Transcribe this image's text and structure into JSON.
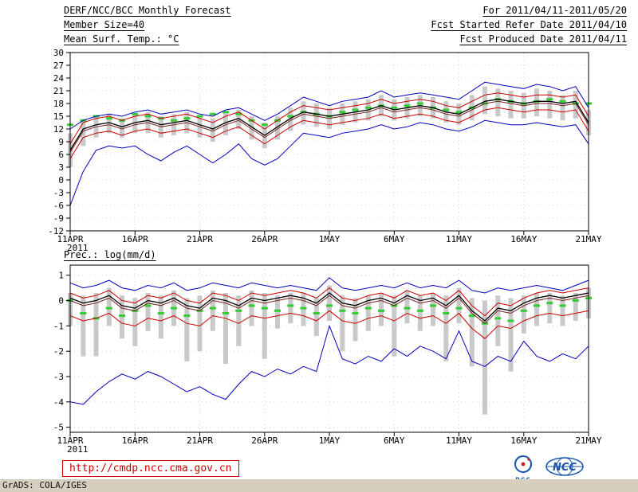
{
  "header": {
    "title_left": "DERF/NCC/BCC Monthly Forecast",
    "period_right": "For 2011/04/11-2011/05/20",
    "member_size": "Member Size=40",
    "refer_date": "Fcst Started Refer Date 2011/04/10",
    "temp_title": "Mean Surf. Temp.: °C",
    "produced_date": "Fcst Produced Date 2011/04/11"
  },
  "prec_title": "Prec.: log(mm/d)",
  "footer": {
    "url": "http://cmdp.ncc.cma.gov.cn",
    "bcc_label": "BCC",
    "ncc_label": "NCC",
    "grads_credit": "GrADS: COLA/IGES"
  },
  "colors": {
    "line_blue": "#0000bb",
    "line_red": "#cc0000",
    "line_black": "#000000",
    "line_maroon": "#7a2020",
    "obs_green": "#33cc33",
    "bar_gray": "#c9c9c9",
    "url_red": "#cc0000",
    "logo_blue": "#1a56b0",
    "strip_tan": "#d6cfc0"
  },
  "chart_data": [
    {
      "type": "line",
      "title": "Mean Surf. Temp.: °C",
      "xlabel": "",
      "ylabel": "",
      "ylim": [
        -12,
        30
      ],
      "yticks": [
        -12,
        -9,
        -6,
        -3,
        0,
        3,
        6,
        9,
        12,
        15,
        18,
        21,
        24,
        27,
        30
      ],
      "x_tick_days": [
        0,
        5,
        10,
        15,
        20,
        25,
        30,
        35,
        40
      ],
      "x_tick_labels": [
        "11APR",
        "16APR",
        "21APR",
        "26APR",
        "1MAY",
        "6MAY",
        "11MAY",
        "16MAY",
        "21MAY"
      ],
      "year_label": "2011",
      "n": 41,
      "legend": "off",
      "grid": "dotted",
      "bars": {
        "name": "ensemble-spread",
        "color": "#c9c9c9",
        "top": [
          11,
          14,
          15,
          15.5,
          14.5,
          15.5,
          16,
          15,
          15.5,
          16,
          15,
          14.5,
          16,
          16.5,
          15,
          13.5,
          15,
          17,
          18.5,
          18,
          17,
          18,
          18.5,
          19,
          20,
          19,
          19.5,
          20,
          19.5,
          18.5,
          18,
          20,
          22,
          21.5,
          21,
          20.5,
          21.5,
          21,
          20,
          21,
          16.5
        ],
        "bottom": [
          3,
          8,
          10,
          11,
          10,
          11,
          11,
          10,
          10.5,
          11,
          10,
          9,
          10.5,
          12,
          9.5,
          7.5,
          9.5,
          11.5,
          13,
          12.5,
          12,
          13,
          13.5,
          14,
          15,
          14,
          14.5,
          15,
          14.5,
          13.5,
          13,
          14,
          15.5,
          15,
          14.5,
          14.5,
          15,
          14.5,
          14,
          14.5,
          10.5
        ]
      },
      "obs": {
        "name": "observation",
        "color": "#33cc33",
        "values": [
          13,
          14,
          15,
          14.5,
          14,
          15.5,
          15,
          14.5,
          14,
          14.5,
          15,
          15.5,
          16,
          15.5,
          14,
          13,
          14,
          15,
          16,
          15.5,
          15,
          16,
          16.5,
          17,
          17.5,
          17,
          17.5,
          18,
          17,
          16.5,
          16,
          17,
          18,
          19,
          18.5,
          18,
          18.5,
          19,
          18.5,
          18,
          18
        ]
      },
      "series": [
        {
          "name": "max",
          "color": "#0000bb",
          "width": 1,
          "values": [
            12,
            14,
            15,
            15.5,
            15,
            16,
            16.5,
            15.5,
            16,
            16.5,
            15.5,
            15,
            16.5,
            17,
            15.5,
            14,
            15.5,
            17.5,
            19.5,
            18.5,
            17.5,
            18.5,
            19,
            19.5,
            21,
            19.5,
            20,
            20.5,
            20,
            19.5,
            19,
            21,
            23,
            22.5,
            22,
            21.5,
            22.5,
            22,
            21,
            22,
            17
          ]
        },
        {
          "name": "upper-quartile",
          "color": "#cc0000",
          "width": 1,
          "values": [
            8.5,
            13.5,
            14.5,
            15,
            14,
            15,
            15.5,
            14.5,
            15,
            15.5,
            14.5,
            13.5,
            15,
            16,
            14,
            12,
            14,
            16,
            17.5,
            17,
            16.5,
            17,
            17.5,
            18,
            19,
            18,
            18.5,
            19,
            18.5,
            17.5,
            17,
            18.5,
            20,
            20.5,
            20,
            19.5,
            20,
            20,
            19.5,
            20,
            15
          ]
        },
        {
          "name": "median",
          "color": "#7a2020",
          "width": 1,
          "values": [
            6.5,
            11.5,
            12.5,
            13,
            12,
            13,
            13.5,
            12.5,
            13,
            13.5,
            12.5,
            11.5,
            13,
            14,
            12,
            10,
            12,
            14,
            15.5,
            15,
            14.5,
            15,
            15.5,
            16,
            17,
            16,
            16.5,
            17,
            16.5,
            15.5,
            15,
            16.5,
            18,
            18.5,
            18,
            17.5,
            18,
            18,
            17.5,
            18,
            13
          ]
        },
        {
          "name": "ensemble-mean",
          "color": "#000000",
          "width": 1.3,
          "values": [
            7,
            12,
            13,
            13.5,
            12.5,
            13.5,
            14,
            13,
            13.5,
            14,
            13,
            12,
            13.5,
            14.5,
            12.5,
            10.5,
            12.5,
            14.5,
            16,
            15.5,
            15,
            15.5,
            16,
            16.5,
            17.5,
            16.5,
            17,
            17.5,
            17,
            16,
            15.5,
            17,
            18.5,
            19,
            18.5,
            18,
            18.5,
            18.5,
            18,
            18.5,
            13.5
          ]
        },
        {
          "name": "lower-quartile",
          "color": "#cc0000",
          "width": 1,
          "values": [
            5,
            10,
            11,
            11.5,
            10.5,
            11.5,
            12,
            11,
            11.5,
            12,
            11,
            10,
            11.5,
            12.5,
            10.5,
            8.5,
            10.5,
            12.5,
            14,
            13.5,
            13,
            13.5,
            14,
            14.5,
            15.5,
            14.5,
            15,
            15.5,
            15,
            14,
            13.5,
            15,
            16.5,
            17,
            16.5,
            16,
            16.5,
            16.5,
            16,
            16.5,
            11.5
          ]
        },
        {
          "name": "min",
          "color": "#0000bb",
          "width": 1,
          "values": [
            -6,
            2,
            7,
            8,
            7.5,
            8,
            6,
            4.5,
            6.5,
            8,
            6,
            4,
            6,
            8.5,
            5,
            3.5,
            5,
            8,
            11,
            10.5,
            10,
            11,
            11.5,
            12,
            13,
            12,
            12.5,
            13.5,
            13,
            12,
            11.5,
            12.5,
            14,
            13.5,
            13,
            13,
            13.5,
            13,
            12.5,
            13,
            8.5
          ]
        }
      ]
    },
    {
      "type": "line",
      "title": "Prec.: log(mm/d)",
      "xlabel": "",
      "ylabel": "",
      "ylim": [
        -5.2,
        1.4
      ],
      "yticks": [
        -5,
        -4,
        -3,
        -2,
        -1,
        0,
        1
      ],
      "x_tick_days": [
        0,
        5,
        10,
        15,
        20,
        25,
        30,
        35,
        40
      ],
      "x_tick_labels": [
        "11APR",
        "16APR",
        "21APR",
        "26APR",
        "1MAY",
        "6MAY",
        "11MAY",
        "16MAY",
        "21MAY"
      ],
      "year_label": "2011",
      "n": 41,
      "legend": "off",
      "grid": "dotted",
      "bars": {
        "name": "ensemble-spread",
        "color": "#c9c9c9",
        "top": [
          0.3,
          0.2,
          0.3,
          0.5,
          0.2,
          0.1,
          0.3,
          0.2,
          0.4,
          0.1,
          0.2,
          0.4,
          0.3,
          0.2,
          0.4,
          0.3,
          0.2,
          0.3,
          0.3,
          0.1,
          0.6,
          0.2,
          0.1,
          0.2,
          0.3,
          0.2,
          0.4,
          0.2,
          0.3,
          0.2,
          0.5,
          0.1,
          0,
          0.2,
          0.1,
          0.2,
          0.3,
          0.3,
          0.2,
          0.3,
          0.5
        ],
        "bottom": [
          -1,
          -2.2,
          -2.2,
          -1,
          -1.5,
          -1.8,
          -1.2,
          -1.5,
          -1,
          -2.4,
          -2,
          -1.2,
          -2.5,
          -1.8,
          -1,
          -2.3,
          -1.1,
          -0.9,
          -1,
          -1.4,
          -0.8,
          -2,
          -1.6,
          -1.2,
          -1,
          -2.2,
          -0.9,
          -1.2,
          -1,
          -2.4,
          -0.9,
          -2.6,
          -4.5,
          -1.8,
          -2.8,
          -1.3,
          -1,
          -0.9,
          -1,
          -0.8,
          -0.7
        ]
      },
      "obs": {
        "name": "observation",
        "color": "#33cc33",
        "values": [
          0,
          -0.5,
          -0.7,
          -0.3,
          -0.6,
          -0.4,
          -0.2,
          -0.5,
          -0.3,
          -0.6,
          -0.4,
          -0.3,
          -0.5,
          -0.4,
          -0.2,
          -0.3,
          -0.4,
          -0.2,
          -0.3,
          -0.5,
          -0.2,
          -0.4,
          -0.5,
          -0.3,
          -0.4,
          -0.2,
          -0.3,
          -0.4,
          -0.2,
          -0.5,
          -0.3,
          -0.6,
          -0.9,
          -0.7,
          -0.8,
          -0.4,
          -0.2,
          -0.1,
          -0.2,
          0,
          0.1
        ]
      },
      "series": [
        {
          "name": "max",
          "color": "#0000bb",
          "width": 1,
          "values": [
            0.7,
            0.5,
            0.6,
            0.8,
            0.5,
            0.4,
            0.6,
            0.5,
            0.7,
            0.4,
            0.5,
            0.7,
            0.6,
            0.5,
            0.7,
            0.6,
            0.5,
            0.6,
            0.5,
            0.4,
            0.9,
            0.5,
            0.4,
            0.5,
            0.6,
            0.5,
            0.7,
            0.5,
            0.6,
            0.5,
            0.8,
            0.4,
            0.3,
            0.5,
            0.4,
            0.5,
            0.6,
            0.5,
            0.4,
            0.6,
            0.8
          ]
        },
        {
          "name": "upper-quartile",
          "color": "#cc0000",
          "width": 1,
          "values": [
            0.3,
            0.1,
            0.2,
            0.4,
            0,
            -0.1,
            0.2,
            0.1,
            0.3,
            0,
            -0.1,
            0.3,
            0.2,
            0,
            0.3,
            0.2,
            0.3,
            0.4,
            0.3,
            0.1,
            0.5,
            0.1,
            0,
            0.2,
            0.3,
            0.1,
            0.4,
            0.2,
            0.3,
            0,
            0.4,
            -0.2,
            -0.6,
            -0.1,
            -0.2,
            0.1,
            0.3,
            0.4,
            0.3,
            0.4,
            0.5
          ]
        },
        {
          "name": "median",
          "color": "#7a2020",
          "width": 1,
          "values": [
            0,
            -0.2,
            -0.1,
            0.1,
            -0.3,
            -0.4,
            -0.1,
            -0.2,
            0,
            -0.3,
            -0.4,
            0,
            -0.1,
            -0.3,
            0,
            -0.1,
            0,
            0.1,
            0,
            -0.2,
            0.2,
            -0.2,
            -0.3,
            -0.1,
            0,
            -0.2,
            0.1,
            -0.1,
            0,
            -0.3,
            0.1,
            -0.5,
            -0.9,
            -0.4,
            -0.5,
            -0.2,
            0,
            0.1,
            0,
            0.1,
            0.2
          ]
        },
        {
          "name": "ensemble-mean",
          "color": "#000000",
          "width": 1.3,
          "values": [
            0.1,
            -0.1,
            0,
            0.2,
            -0.2,
            -0.3,
            0,
            -0.1,
            0.1,
            -0.2,
            -0.3,
            0.1,
            0,
            -0.2,
            0.1,
            0,
            0.1,
            0.2,
            0.1,
            -0.1,
            0.3,
            -0.1,
            -0.2,
            0,
            0.1,
            -0.1,
            0.2,
            0,
            0.1,
            -0.2,
            0.2,
            -0.4,
            -0.8,
            -0.3,
            -0.4,
            -0.1,
            0.1,
            0.2,
            0.1,
            0.2,
            0.3
          ]
        },
        {
          "name": "lower-quartile",
          "color": "#cc0000",
          "width": 1,
          "values": [
            -0.6,
            -0.8,
            -0.7,
            -0.5,
            -0.9,
            -1,
            -0.7,
            -0.8,
            -0.6,
            -0.9,
            -1,
            -0.6,
            -0.7,
            -0.9,
            -0.6,
            -0.7,
            -0.6,
            -0.5,
            -0.6,
            -0.8,
            -0.4,
            -0.8,
            -0.9,
            -0.7,
            -0.6,
            -0.8,
            -0.5,
            -0.7,
            -0.6,
            -0.9,
            -0.5,
            -1.1,
            -1.5,
            -1,
            -1.1,
            -0.8,
            -0.6,
            -0.5,
            -0.6,
            -0.5,
            -0.4
          ]
        },
        {
          "name": "min",
          "color": "#0000bb",
          "width": 1,
          "values": [
            -4,
            -4.1,
            -3.6,
            -3.2,
            -2.9,
            -3.1,
            -2.8,
            -3,
            -3.3,
            -3.6,
            -3.4,
            -3.7,
            -3.9,
            -3.3,
            -2.8,
            -3,
            -2.7,
            -2.9,
            -2.6,
            -2.8,
            -1,
            -2.3,
            -2.5,
            -2.2,
            -2.4,
            -1.9,
            -2.2,
            -1.8,
            -2,
            -2.3,
            -1.2,
            -2.4,
            -2.6,
            -2.2,
            -2.4,
            -1.6,
            -2.2,
            -2.4,
            -2.1,
            -2.3,
            -1.8
          ]
        }
      ]
    }
  ]
}
